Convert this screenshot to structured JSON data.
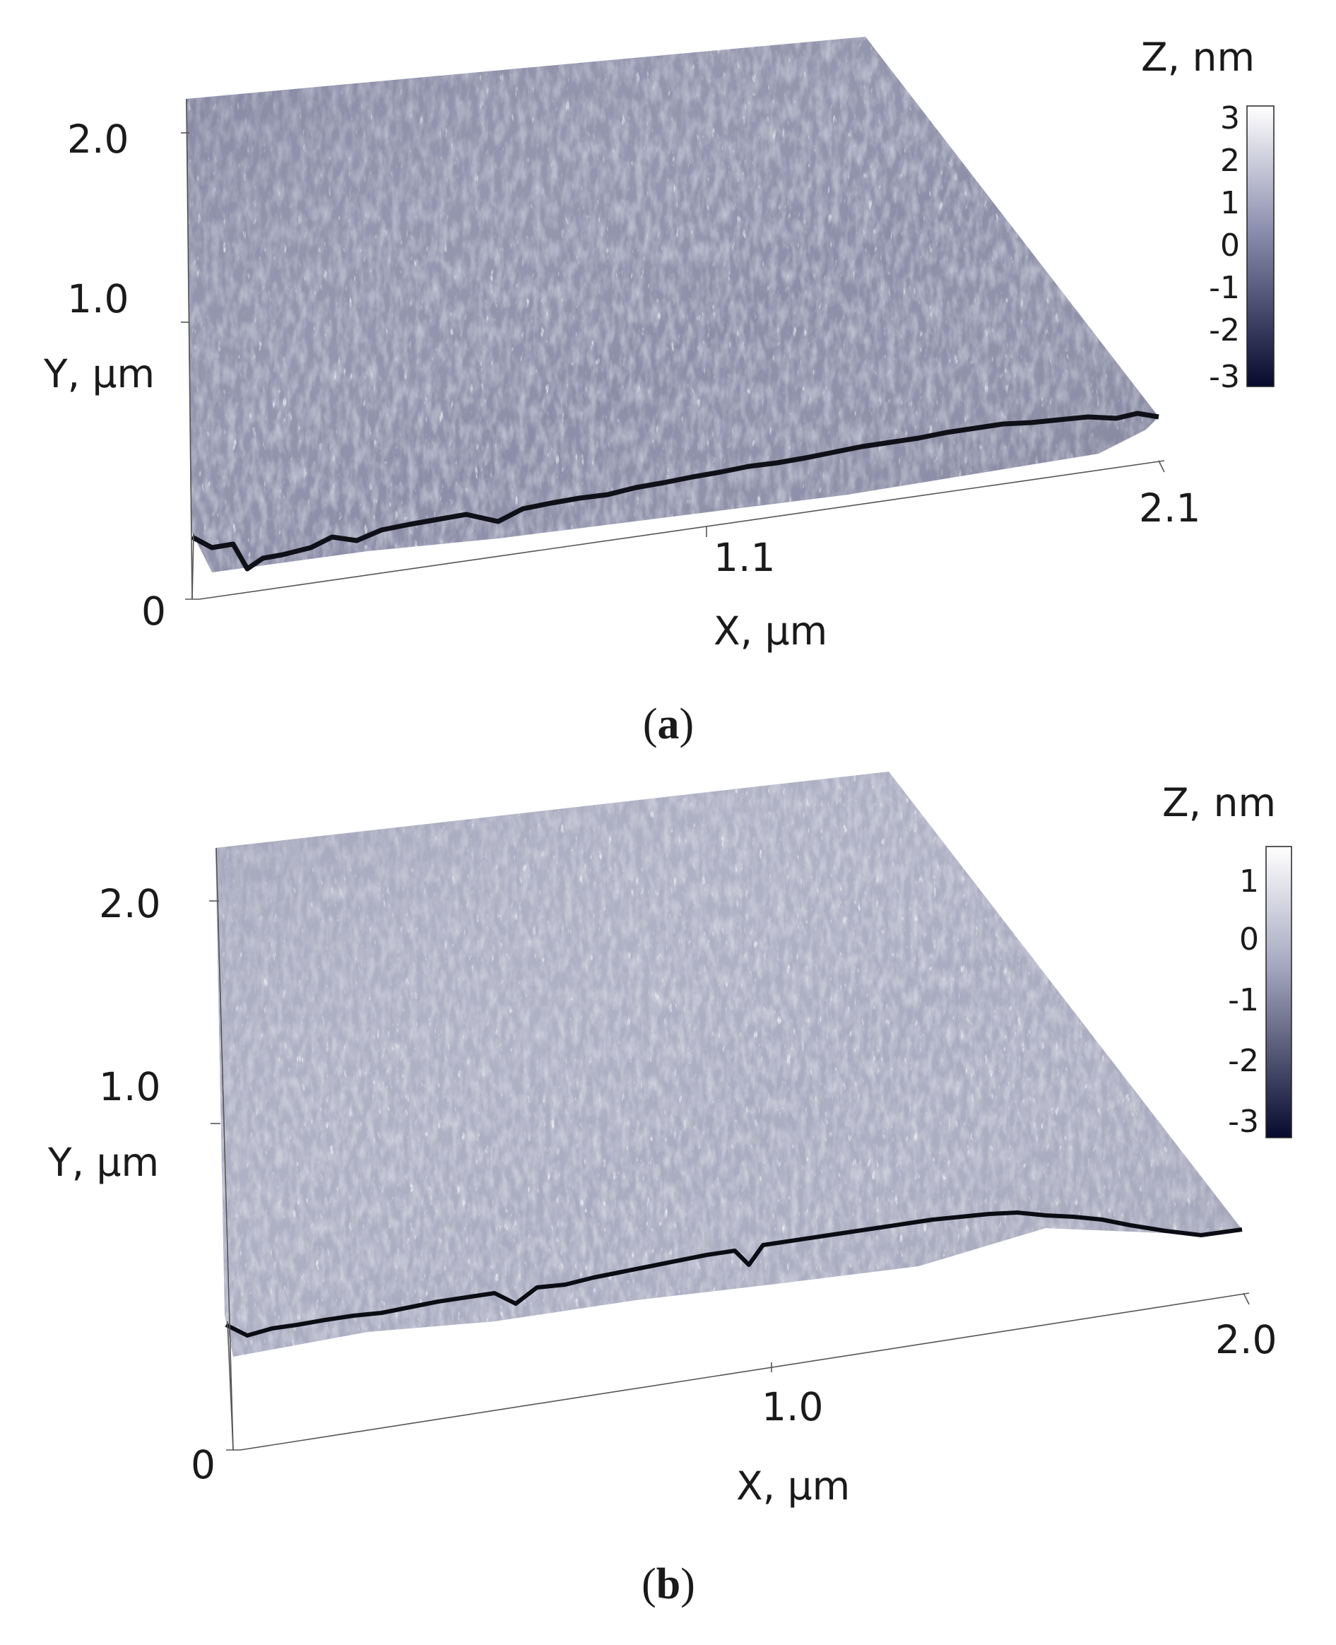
{
  "panels": [
    {
      "axes": {
        "y_label": "Y, µm",
        "x_label": "X, µm",
        "y_ticks": [
          "0",
          "1.0",
          "2.0"
        ],
        "x_ticks": [
          "1.1",
          "2.1"
        ]
      },
      "colorbar": {
        "title": "Z, nm",
        "ticks": [
          "3",
          "2",
          "1",
          "0",
          "-1",
          "-2",
          "-3"
        ],
        "colors": {
          "high": "#ffffff",
          "mid": "#8a8cad",
          "low": "#070a2e"
        }
      },
      "surface": {
        "tone": "#8c8ea8",
        "highlight": "#e8e8f0",
        "shadow": "#3c3d52",
        "edge": "#101018"
      },
      "caption": {
        "paren_open": "(",
        "letter": "a",
        "paren_close": ")"
      }
    },
    {
      "axes": {
        "y_label": "Y, µm",
        "x_label": "X, µm",
        "y_ticks": [
          "0",
          "1.0",
          "2.0"
        ],
        "x_ticks": [
          "1.0",
          "2.0"
        ]
      },
      "colorbar": {
        "title": "Z, nm",
        "ticks": [
          "1",
          "0",
          "-1",
          "-2",
          "-3"
        ],
        "colors": {
          "high": "#ffffff",
          "mid": "#a8aac2",
          "low": "#070a2e"
        }
      },
      "surface": {
        "tone": "#a9abc0",
        "highlight": "#f2f2f7",
        "shadow": "#55566b",
        "edge": "#0c0c14"
      },
      "caption": {
        "paren_open": "(",
        "letter": "b",
        "paren_close": ")"
      }
    }
  ]
}
